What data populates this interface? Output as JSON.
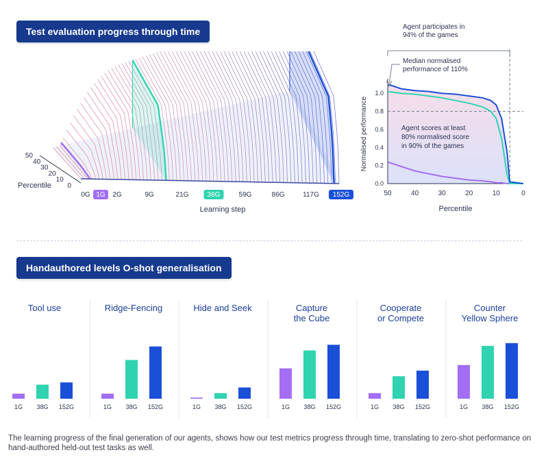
{
  "section1": {
    "title": "Test evaluation progress through time"
  },
  "section2": {
    "title": "Handauthored levels O-shot generalisation"
  },
  "caption": "The learning progress of the final generation of our agents, shows how our test metrics progress through time, translating to zero-shot performance on hand-authored held-out test tasks as well.",
  "colors": {
    "purple": "#a36ef5",
    "teal": "#2fd3b0",
    "blue": "#1a4fd8",
    "navy": "#173a8f",
    "pink": "#e8889a"
  },
  "chart_data": [
    {
      "type": "area",
      "xlabel": "Learning step",
      "ylabel": "Percentile",
      "x_ticks": [
        "0G",
        "1G",
        "2G",
        "9G",
        "21G",
        "38G",
        "59G",
        "86G",
        "117G",
        "152G"
      ],
      "highlighted_ticks": {
        "1G": "purple",
        "38G": "teal",
        "152G": "blue"
      },
      "percentile_ticks": [
        "50",
        "40",
        "30",
        "20",
        "10",
        "0"
      ]
    },
    {
      "type": "line",
      "xlabel": "Percentile",
      "ylabel": "Normalised performance",
      "xlim": [
        50,
        0
      ],
      "ylim": [
        0,
        1.1
      ],
      "x_ticks": [
        "50",
        "40",
        "30",
        "20",
        "10",
        "0"
      ],
      "y_ticks": [
        "0.0",
        "0.2",
        "0.4",
        "0.6",
        "0.8",
        "1.0"
      ],
      "x": [
        50,
        45,
        40,
        35,
        30,
        25,
        20,
        15,
        12,
        10,
        8,
        6,
        5,
        0
      ],
      "series": [
        {
          "name": "1G",
          "color": "purple",
          "values": [
            0.24,
            0.19,
            0.14,
            0.11,
            0.08,
            0.06,
            0.04,
            0.03,
            0.02,
            0.01,
            0.01,
            0.0,
            0.0,
            0.0
          ]
        },
        {
          "name": "38G",
          "color": "teal",
          "values": [
            1.02,
            1.0,
            0.99,
            0.97,
            0.95,
            0.92,
            0.89,
            0.85,
            0.8,
            0.72,
            0.5,
            0.1,
            0.0,
            0.0
          ]
        },
        {
          "name": "152G",
          "color": "blue",
          "values": [
            1.1,
            1.05,
            1.03,
            1.02,
            1.0,
            0.99,
            0.97,
            0.95,
            0.92,
            0.87,
            0.72,
            0.35,
            0.02,
            0.0
          ]
        }
      ],
      "reference_line_y": 0.8,
      "reference_line_x": 5,
      "annotations": [
        "Agent participates in 94% of the games",
        "Median normalised performance of 110%",
        "Agent scores at least 80% normalised score in 90% of the games"
      ]
    },
    {
      "type": "bar",
      "categories": [
        "1G",
        "38G",
        "152G"
      ],
      "colors": [
        "purple",
        "teal",
        "blue"
      ],
      "ylim": [
        0,
        1
      ],
      "panels": [
        {
          "title": "Tool use",
          "values": [
            0.09,
            0.25,
            0.29
          ]
        },
        {
          "title": "Ridge-Fencing",
          "values": [
            0.09,
            0.69,
            0.93
          ]
        },
        {
          "title": "Hide and Seek",
          "values": [
            0.02,
            0.1,
            0.2
          ]
        },
        {
          "title": "Capture the Cube",
          "values": [
            0.54,
            0.86,
            0.96
          ]
        },
        {
          "title": "Cooperate or Compete",
          "values": [
            0.1,
            0.4,
            0.5
          ]
        },
        {
          "title": "Counter Yellow Sphere",
          "values": [
            0.6,
            0.94,
            0.99
          ]
        }
      ]
    }
  ]
}
